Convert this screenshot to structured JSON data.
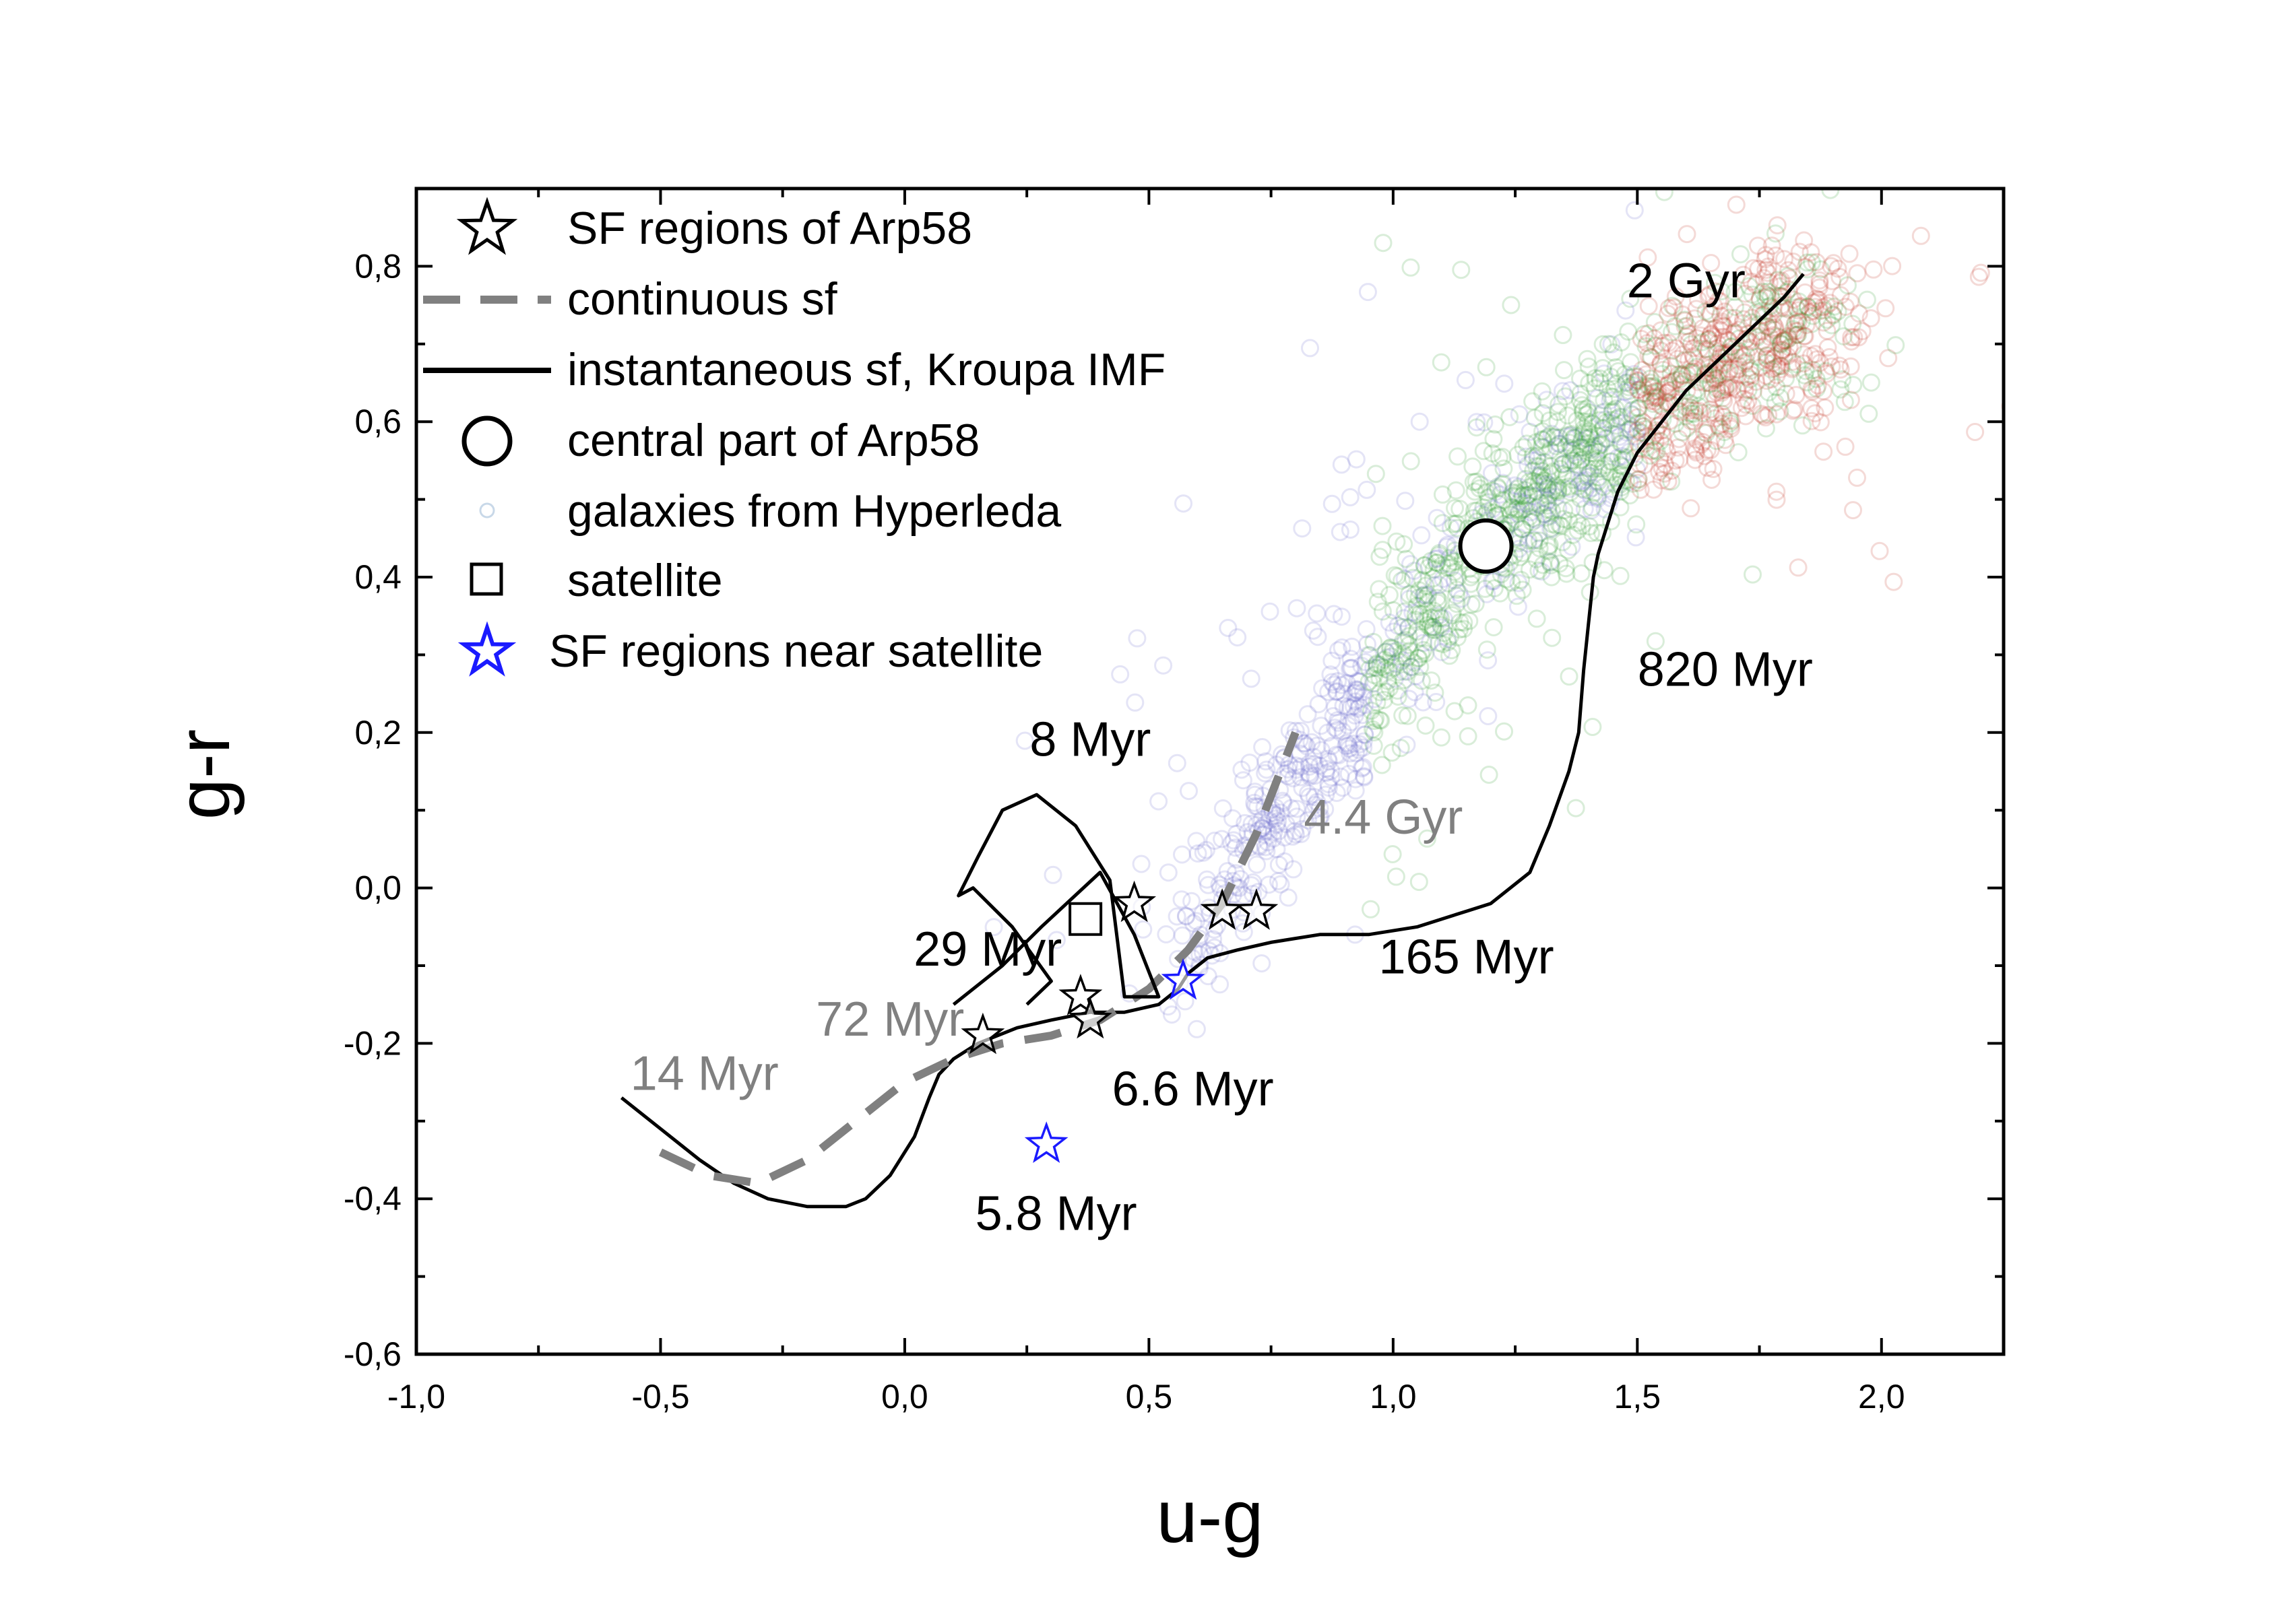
{
  "chart_data": {
    "type": "scatter",
    "title": "",
    "xlabel": "u-g",
    "ylabel": "g-r",
    "xlim": [
      -1.0,
      2.25
    ],
    "ylim": [
      -0.6,
      0.9
    ],
    "x_ticks": [
      -1.0,
      -0.5,
      0.0,
      0.5,
      1.0,
      1.5,
      2.0
    ],
    "x_tick_labels": [
      "-1,0",
      "-0,5",
      "0,0",
      "0,5",
      "1,0",
      "1,5",
      "2,0"
    ],
    "y_ticks": [
      -0.6,
      -0.4,
      -0.2,
      0.0,
      0.2,
      0.4,
      0.6,
      0.8
    ],
    "y_tick_labels": [
      "-0,6",
      "-0,4",
      "-0,2",
      "0,0",
      "0,2",
      "0,4",
      "0,6",
      "0,8"
    ],
    "grid": false,
    "legend_position": "top-left",
    "legend": [
      {
        "label": "SF regions of Arp58",
        "marker": "star-open",
        "color": "#000000"
      },
      {
        "label": "continuous sf",
        "marker": "dashed-line",
        "color": "#808080"
      },
      {
        "label": "instantaneous sf, Kroupa IMF",
        "marker": "solid-line",
        "color": "#000000"
      },
      {
        "label": "central part of Arp58",
        "marker": "circle-open-large",
        "color": "#000000"
      },
      {
        "label": "galaxies from Hyperleda",
        "marker": "circle-faint",
        "color": "#c8d8e8"
      },
      {
        "label": "satellite",
        "marker": "square-open",
        "color": "#000000"
      },
      {
        "label": "SF regions near satellite",
        "marker": "star-open",
        "color": "#1a1aff"
      }
    ],
    "series": [
      {
        "name": "instantaneous sf, Kroupa IMF",
        "type": "line",
        "color": "#000000",
        "x": [
          -0.58,
          -0.5,
          -0.42,
          -0.35,
          -0.28,
          -0.2,
          -0.12,
          -0.08,
          -0.03,
          0.02,
          0.05,
          0.07,
          0.1,
          0.15,
          0.23,
          0.3,
          0.38,
          0.45,
          0.52,
          0.56,
          0.58,
          0.62,
          0.68,
          0.75,
          0.85,
          0.95,
          1.05,
          1.15,
          1.2,
          1.28,
          1.32,
          1.36,
          1.38,
          1.39,
          1.4,
          1.41,
          1.42,
          1.44,
          1.46,
          1.5,
          1.55,
          1.6,
          1.65,
          1.7,
          1.75,
          1.8,
          1.84
        ],
        "y": [
          -0.27,
          -0.31,
          -0.35,
          -0.38,
          -0.4,
          -0.41,
          -0.41,
          -0.4,
          -0.37,
          -0.32,
          -0.27,
          -0.24,
          -0.22,
          -0.2,
          -0.18,
          -0.17,
          -0.16,
          -0.16,
          -0.15,
          -0.13,
          -0.11,
          -0.09,
          -0.08,
          -0.07,
          -0.06,
          -0.06,
          -0.05,
          -0.03,
          -0.02,
          0.02,
          0.08,
          0.15,
          0.2,
          0.28,
          0.34,
          0.4,
          0.43,
          0.47,
          0.51,
          0.56,
          0.6,
          0.64,
          0.67,
          0.7,
          0.73,
          0.76,
          0.79
        ]
      },
      {
        "name": "continuous sf",
        "type": "line",
        "dash": true,
        "color": "#808080",
        "x": [
          -0.5,
          -0.4,
          -0.3,
          -0.2,
          -0.1,
          0.0,
          0.1,
          0.2,
          0.3,
          0.4,
          0.5,
          0.58,
          0.65,
          0.72,
          0.8
        ],
        "y": [
          -0.34,
          -0.37,
          -0.38,
          -0.35,
          -0.3,
          -0.25,
          -0.22,
          -0.2,
          -0.19,
          -0.17,
          -0.13,
          -0.08,
          -0.02,
          0.07,
          0.2
        ]
      },
      {
        "name": "SF regions of Arp58",
        "type": "scatter",
        "marker": "star-open",
        "color": "#000000",
        "x": [
          0.16,
          0.36,
          0.38,
          0.47,
          0.65,
          0.72
        ],
        "y": [
          -0.19,
          -0.14,
          -0.17,
          -0.02,
          -0.03,
          -0.03
        ]
      },
      {
        "name": "SF regions near satellite",
        "type": "scatter",
        "marker": "star-open",
        "color": "#1a1aff",
        "x": [
          0.57,
          0.29
        ],
        "y": [
          -0.12,
          -0.33
        ]
      },
      {
        "name": "satellite",
        "type": "scatter",
        "marker": "square-open",
        "color": "#000000",
        "x": [
          0.37
        ],
        "y": [
          -0.04
        ]
      },
      {
        "name": "central part of Arp58",
        "type": "scatter",
        "marker": "circle-open-large",
        "color": "#000000",
        "x": [
          1.19
        ],
        "y": [
          0.44
        ]
      },
      {
        "name": "galaxies from Hyperleda",
        "type": "density-scatter",
        "marker": "circle-faint",
        "colors_along_sequence": [
          "#6a6acc",
          "#2f9a2f",
          "#c03020"
        ],
        "ridge_x": [
          0.6,
          0.8,
          1.0,
          1.2,
          1.4,
          1.6,
          1.8
        ],
        "ridge_y": [
          -0.05,
          0.12,
          0.3,
          0.45,
          0.55,
          0.65,
          0.72
        ]
      }
    ],
    "annotations": [
      {
        "text": "2 Gyr",
        "x": 1.6,
        "y": 0.76,
        "color": "#000000"
      },
      {
        "text": "820 Myr",
        "x": 1.68,
        "y": 0.26,
        "color": "#000000"
      },
      {
        "text": "8 Myr",
        "x": 0.38,
        "y": 0.17,
        "color": "#000000"
      },
      {
        "text": "4.4 Gyr",
        "x": 0.98,
        "y": 0.07,
        "color": "#808080"
      },
      {
        "text": "165 Myr",
        "x": 1.15,
        "y": -0.11,
        "color": "#000000"
      },
      {
        "text": "29 Myr",
        "x": 0.17,
        "y": -0.1,
        "color": "#000000"
      },
      {
        "text": "72 Myr",
        "x": -0.03,
        "y": -0.19,
        "color": "#808080"
      },
      {
        "text": "14 Myr",
        "x": -0.41,
        "y": -0.26,
        "color": "#808080"
      },
      {
        "text": "6.6 Myr",
        "x": 0.59,
        "y": -0.28,
        "color": "#000000"
      },
      {
        "text": "5.8 Myr",
        "x": 0.31,
        "y": -0.44,
        "color": "#000000"
      }
    ]
  }
}
